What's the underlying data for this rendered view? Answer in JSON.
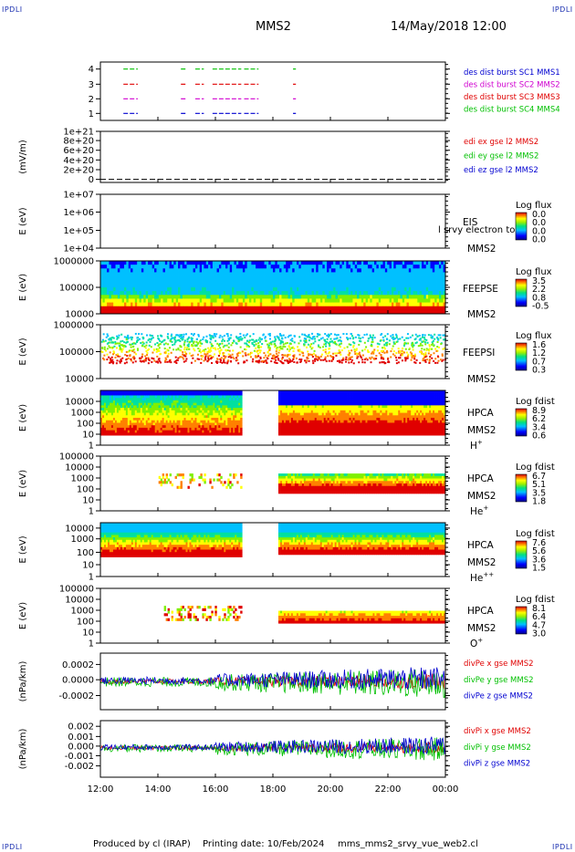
{
  "header": {
    "spacecraft": "MMS2",
    "date": "14/May/2018 12:00",
    "corner_mark": "IPDLI"
  },
  "footer": {
    "produced_by": "Produced by cl (IRAP)",
    "printing_date": "Printing date: 10/Feb/2024",
    "filename": "mms_mms2_srvy_vue_web2.cl"
  },
  "colors": {
    "red": "#e00000",
    "green": "#00c000",
    "blue": "#0000d0",
    "magenta": "#d000d0"
  },
  "chart_data": {
    "type": "heatmap",
    "x_ticks": [
      "12:00",
      "14:00",
      "16:00",
      "18:00",
      "20:00",
      "22:00",
      "00:00"
    ],
    "panels": [
      {
        "id": "dist-burst",
        "type": "scatter",
        "ylabel": "",
        "yticks": [
          "4",
          "3",
          "2",
          "1"
        ],
        "legend": [
          {
            "text": "des dist burst SC1 MMS1",
            "color": "#0000d0"
          },
          {
            "text": "des dist burst SC2 MMS2",
            "color": "#d000d0"
          },
          {
            "text": "des dist burst SC3 MMS3",
            "color": "#e00000"
          },
          {
            "text": "des dist burst SC4 MMS4",
            "color": "#00c000"
          }
        ],
        "burst_intervals_hours": [
          [
            12.8,
            13.3
          ],
          [
            14.8,
            15.0
          ],
          [
            15.3,
            15.6
          ],
          [
            15.9,
            16.9
          ],
          [
            17.0,
            17.5
          ],
          [
            18.7,
            18.8
          ]
        ]
      },
      {
        "id": "edi-e",
        "type": "line",
        "ylabel": "(mV/m)",
        "yticks": [
          "1e+21",
          "8e+20",
          "6e+20",
          "4e+20",
          "2e+20",
          "0"
        ],
        "legend": [
          {
            "text": "edi ex gse l2 MMS2",
            "color": "#e00000"
          },
          {
            "text": "edi ey gse l2 MMS2",
            "color": "#00c000"
          },
          {
            "text": "edi ez gse l2 MMS2",
            "color": "#0000d0"
          }
        ]
      },
      {
        "id": "eis",
        "type": "heatmap",
        "ylabel": "E (eV)",
        "yticks": [
          "1e+07",
          "1e+06",
          "1e+05",
          "1e+04"
        ],
        "labels": [
          "EIS",
          "MMS2"
        ],
        "overlay_text": "l srvy electron to",
        "colorbar_title": "Log flux",
        "colorbar_ticks": [
          "0.0",
          "0.0",
          "0.0",
          "0.0"
        ]
      },
      {
        "id": "feepse",
        "type": "heatmap",
        "ylabel": "E (eV)",
        "yticks": [
          "1000000",
          "100000",
          "10000"
        ],
        "labels": [
          "FEEPSE",
          "MMS2"
        ],
        "colorbar_title": "Log flux",
        "colorbar_ticks": [
          "3.5",
          "2.2",
          "0.8",
          "-0.5"
        ]
      },
      {
        "id": "feepsi",
        "type": "heatmap",
        "ylabel": "E (eV)",
        "yticks": [
          "1000000",
          "100000",
          "10000"
        ],
        "labels": [
          "FEEPSI",
          "MMS2"
        ],
        "colorbar_title": "Log flux",
        "colorbar_ticks": [
          "1.6",
          "1.2",
          "0.7",
          "0.3"
        ]
      },
      {
        "id": "hpca-h",
        "type": "heatmap",
        "ylabel": "E (eV)",
        "yticks": [
          "10000",
          "1000",
          "100",
          "10",
          "1"
        ],
        "labels": [
          "HPCA",
          "MMS2"
        ],
        "species": "H",
        "species_sup": "+",
        "colorbar_title": "Log fdist",
        "colorbar_ticks": [
          "8.9",
          "6.2",
          "3.4",
          "0.6"
        ],
        "gap_hours": [
          16.9,
          18.2
        ]
      },
      {
        "id": "hpca-he1",
        "type": "heatmap",
        "ylabel": "E (eV)",
        "yticks": [
          "100000",
          "10000",
          "1000",
          "100",
          "10",
          "1"
        ],
        "labels": [
          "HPCA",
          "MMS2"
        ],
        "species": "He",
        "species_sup": "+",
        "colorbar_title": "Log fdist",
        "colorbar_ticks": [
          "6.7",
          "5.1",
          "3.5",
          "1.8"
        ],
        "gap_hours": [
          16.9,
          18.2
        ]
      },
      {
        "id": "hpca-he2",
        "type": "heatmap",
        "ylabel": "E (eV)",
        "yticks": [
          "10000",
          "1000",
          "100",
          "10",
          "1"
        ],
        "labels": [
          "HPCA",
          "MMS2"
        ],
        "species": "He",
        "species_sup": "++",
        "colorbar_title": "Log fdist",
        "colorbar_ticks": [
          "7.6",
          "5.6",
          "3.6",
          "1.5"
        ],
        "gap_hours": [
          16.9,
          18.2
        ]
      },
      {
        "id": "hpca-o",
        "type": "heatmap",
        "ylabel": "E (eV)",
        "yticks": [
          "100000",
          "10000",
          "1000",
          "100",
          "10",
          "1"
        ],
        "labels": [
          "HPCA",
          "MMS2"
        ],
        "species": "O",
        "species_sup": "+",
        "colorbar_title": "Log fdist",
        "colorbar_ticks": [
          "8.1",
          "6.4",
          "4.7",
          "3.0"
        ],
        "gap_hours": [
          16.9,
          18.2
        ]
      },
      {
        "id": "divpe",
        "type": "line",
        "ylabel": "(nPa/km)",
        "yticks": [
          "0.0002",
          "0.0000",
          "-0.0002"
        ],
        "ylim": [
          -0.0003,
          0.0003
        ],
        "legend": [
          {
            "text": "divPe x gse MMS2",
            "color": "#e00000"
          },
          {
            "text": "divPe y gse MMS2",
            "color": "#00c000"
          },
          {
            "text": "divPe z gse MMS2",
            "color": "#0000d0"
          }
        ]
      },
      {
        "id": "divpi",
        "type": "line",
        "ylabel": "(nPa/km)",
        "yticks": [
          "0.002",
          "0.001",
          "0.000",
          "-0.001",
          "-0.002"
        ],
        "ylim": [
          -0.0027,
          0.0025
        ],
        "legend": [
          {
            "text": "divPi x gse MMS2",
            "color": "#e00000"
          },
          {
            "text": "divPi y gse MMS2",
            "color": "#00c000"
          },
          {
            "text": "divPi z gse MMS2",
            "color": "#0000d0"
          }
        ]
      }
    ]
  }
}
